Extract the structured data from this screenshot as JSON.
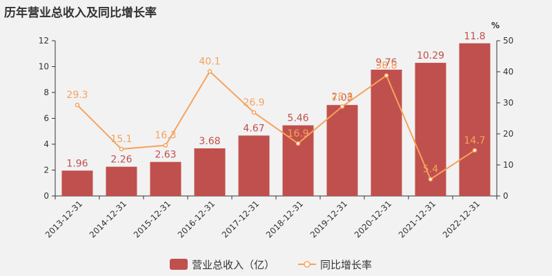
{
  "title": "历年营业总收入及同比增长率",
  "colors": {
    "bar": "#c0504d",
    "line": "#f5a35c",
    "axis": "#333333",
    "text": "#333333"
  },
  "chart_data": {
    "type": "bar+line",
    "categories": [
      "2013-12-31",
      "2014-12-31",
      "2015-12-31",
      "2016-12-31",
      "2017-12-31",
      "2018-12-31",
      "2019-12-31",
      "2020-12-31",
      "2021-12-31",
      "2022-12-31"
    ],
    "series": [
      {
        "name": "营业总收入（亿）",
        "type": "bar",
        "axis": "left",
        "values": [
          1.96,
          2.26,
          2.63,
          3.68,
          4.67,
          5.46,
          7.03,
          9.76,
          10.29,
          11.8
        ]
      },
      {
        "name": "同比增长率",
        "type": "line",
        "axis": "right",
        "values": [
          29.3,
          15.1,
          16.3,
          40.1,
          26.9,
          16.9,
          28.8,
          38.8,
          5.4,
          14.7
        ]
      }
    ],
    "y_left": {
      "ylim": [
        0,
        12
      ],
      "ticks": [
        0,
        2,
        4,
        6,
        8,
        10,
        12
      ]
    },
    "y_right": {
      "ylim": [
        0,
        50
      ],
      "ticks": [
        0,
        10,
        20,
        30,
        40,
        50
      ],
      "unit": "%"
    },
    "legend": "bottom-center",
    "grid": false
  }
}
